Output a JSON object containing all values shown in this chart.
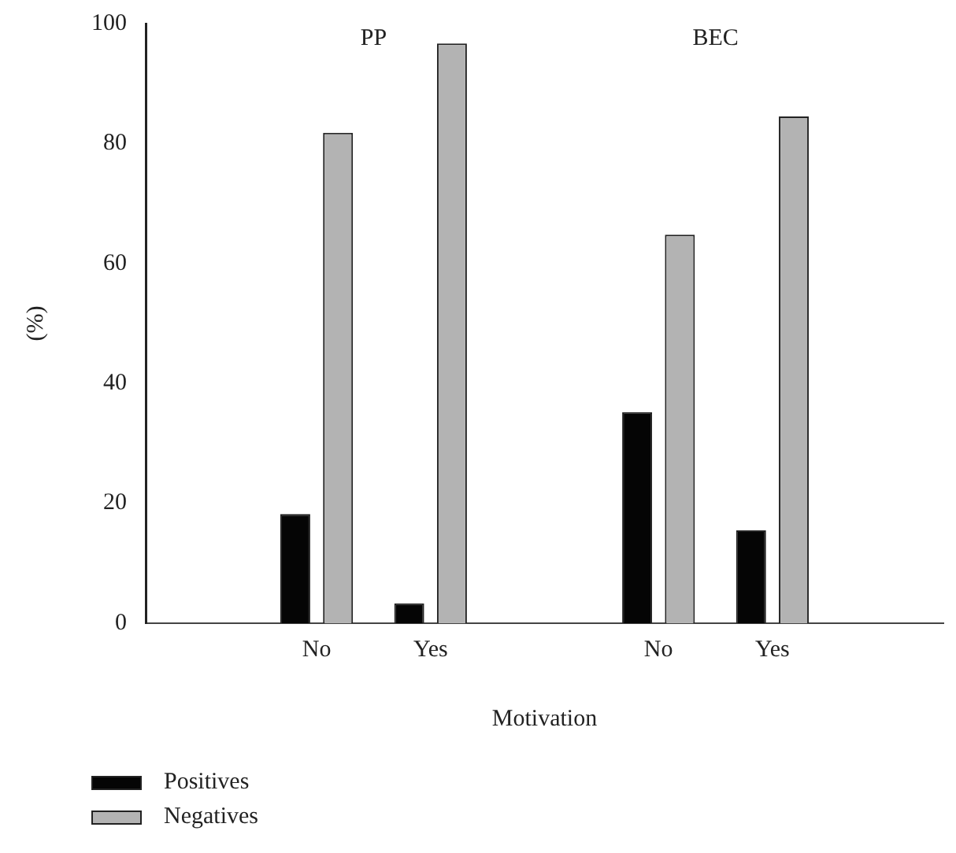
{
  "chart_data": {
    "type": "bar",
    "xlabel": "Motivation",
    "ylabel": "(%)",
    "categories": [
      null,
      "No",
      "Yes",
      null,
      "No",
      "Yes",
      null
    ],
    "series": [
      {
        "name": "Positives",
        "color": "#050505",
        "values": [
          null,
          18.2,
          3.3,
          null,
          35.2,
          15.5,
          null
        ]
      },
      {
        "name": "Negatives",
        "color": "#b3b3b3",
        "values": [
          null,
          81.8,
          96.7,
          null,
          64.8,
          84.5,
          null
        ]
      }
    ],
    "annotations": [
      "PP",
      "BEC"
    ],
    "ylim": [
      0,
      100
    ],
    "yticks": [
      0,
      20,
      40,
      60,
      80,
      100
    ],
    "grid": false,
    "legend": "bottom left"
  }
}
